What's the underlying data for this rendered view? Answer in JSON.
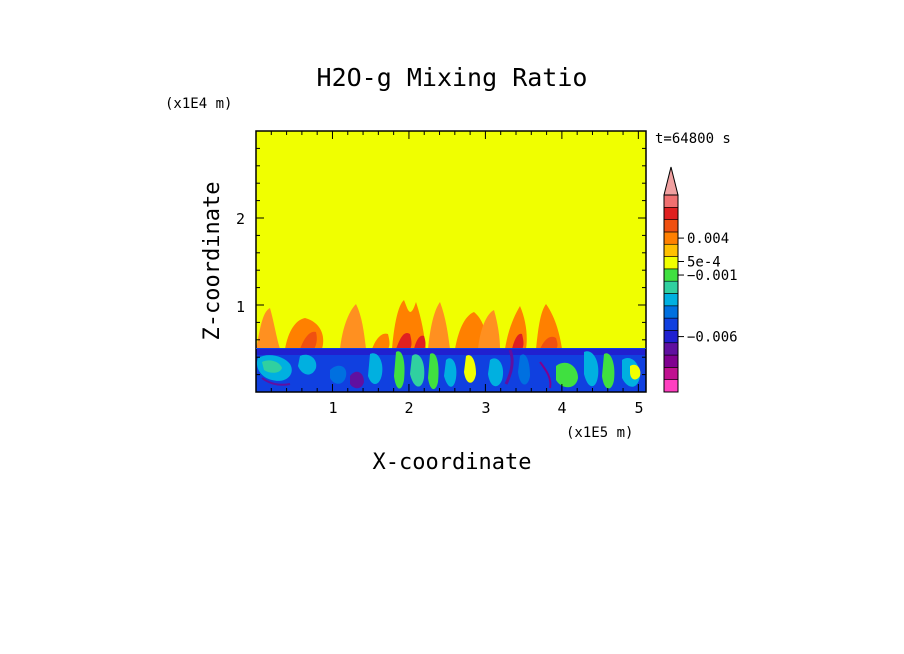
{
  "chart_data": {
    "type": "heatmap",
    "title": "H2O-g Mixing Ratio",
    "xlabel": "X-coordinate",
    "ylabel": "Z-coordinate",
    "x_unit": "(x1E5 m)",
    "y_unit": "(x1E4 m)",
    "time_label": "t=64800 s",
    "xlim": [
      0,
      5.1
    ],
    "ylim": [
      0,
      3
    ],
    "x_ticks": [
      "1",
      "2",
      "3",
      "4",
      "5"
    ],
    "y_ticks": [
      "1",
      "2"
    ],
    "boundary_layer_top": 0.5,
    "colorbar": {
      "levels": [
        {
          "color": "#ff40c0"
        },
        {
          "color": "#c01090"
        },
        {
          "color": "#800090"
        },
        {
          "color": "#6010a0"
        },
        {
          "color": "#2020d0"
        },
        {
          "color": "#1040e0"
        },
        {
          "color": "#0070e0"
        },
        {
          "color": "#00b0e0"
        },
        {
          "color": "#30d0a0"
        },
        {
          "color": "#40e040"
        },
        {
          "color": "#f0ff00"
        },
        {
          "color": "#ffc000"
        },
        {
          "color": "#ff8000"
        },
        {
          "color": "#f05010"
        },
        {
          "color": "#e02020"
        },
        {
          "color": "#f07070"
        }
      ],
      "overflow_color": "#f0a0a0",
      "labels": [
        {
          "text": "0.004",
          "level": 12.5
        },
        {
          "text": "5e-4",
          "level": 10.6
        },
        {
          "text": "−0.001",
          "level": 9.5
        },
        {
          "text": "−0.006",
          "level": 4.5
        }
      ]
    }
  }
}
